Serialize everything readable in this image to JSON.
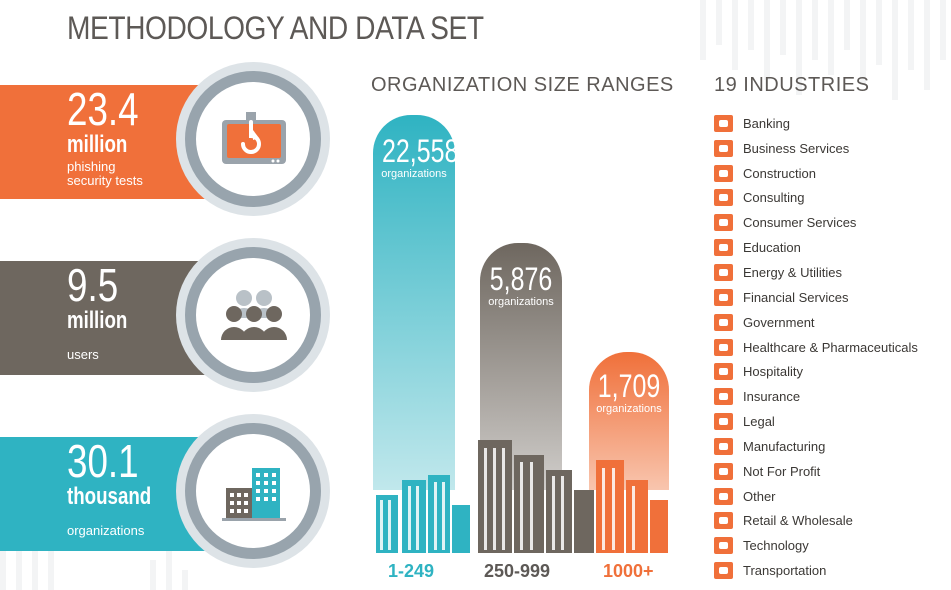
{
  "page": {
    "title": "METHODOLOGY AND DATA SET"
  },
  "stats": [
    {
      "value": "23.4",
      "unit": "million",
      "desc_lines": [
        "phishing",
        "security tests"
      ],
      "icon": "phishing-hook-icon",
      "color": "#f0703a"
    },
    {
      "value": "9.5",
      "unit": "million",
      "desc_lines": [
        "users"
      ],
      "icon": "users-group-icon",
      "color": "#6e675f"
    },
    {
      "value": "30.1",
      "unit": "thousand",
      "desc_lines": [
        "organizations"
      ],
      "icon": "buildings-icon",
      "color": "#2fb3c2"
    }
  ],
  "size_ranges": {
    "title": "ORGANIZATION SIZE RANGES",
    "bars": [
      {
        "value": "22,558",
        "sublabel": "organizations",
        "range": "1-249",
        "color": "#2fb3c2"
      },
      {
        "value": "5,876",
        "sublabel": "organizations",
        "range": "250-999",
        "color": "#6e675f"
      },
      {
        "value": "1,709",
        "sublabel": "organizations",
        "range": "1000+",
        "color": "#f0703a"
      }
    ]
  },
  "industries": {
    "title": "19 INDUSTRIES",
    "items": [
      "Banking",
      "Business Services",
      "Construction",
      "Consulting",
      "Consumer Services",
      "Education",
      "Energy & Utilities",
      "Financial Services",
      "Government",
      "Healthcare & Pharmaceuticals",
      "Hospitality",
      "Insurance",
      "Legal",
      "Manufacturing",
      "Not For Profit",
      "Other",
      "Retail & Wholesale",
      "Technology",
      "Transportation"
    ],
    "icon_color": "#f0703a"
  }
}
